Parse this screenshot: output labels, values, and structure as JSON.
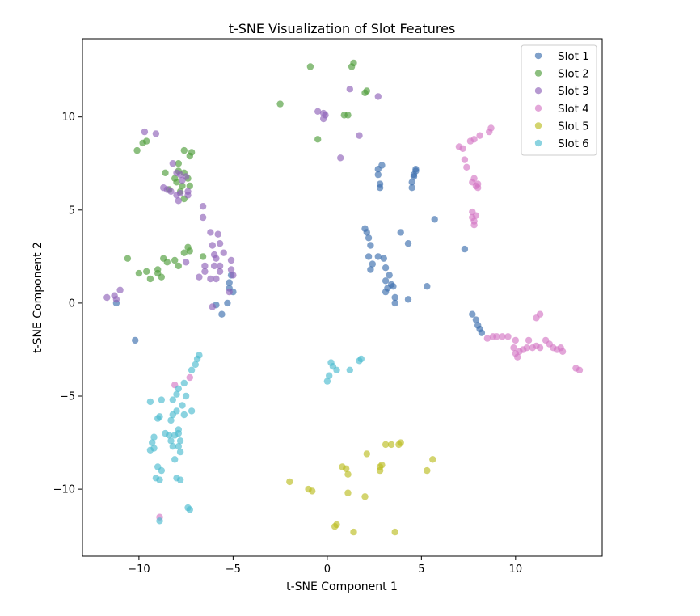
{
  "chart_data": {
    "type": "scatter",
    "title": "t-SNE Visualization of Slot Features",
    "xlabel": "t-SNE Component 1",
    "ylabel": "t-SNE Component 2",
    "xlim": [
      -13.0,
      14.6
    ],
    "ylim": [
      -13.6,
      14.2
    ],
    "xticks": [
      -10,
      -5,
      0,
      5,
      10
    ],
    "yticks": [
      -10,
      -5,
      0,
      5,
      10
    ],
    "xtick_labels": [
      "−10",
      "−5",
      "0",
      "5",
      "10"
    ],
    "ytick_labels": [
      "−10",
      "−5",
      "0",
      "5",
      "10"
    ],
    "grid": false,
    "legend_position": "top-right",
    "marker_alpha": 0.65,
    "series": [
      {
        "name": "Slot 1",
        "color": "#3c6fae",
        "points": [
          [
            2.7,
            7.2
          ],
          [
            2.9,
            7.4
          ],
          [
            2.7,
            6.9
          ],
          [
            2.8,
            6.4
          ],
          [
            2.8,
            6.2
          ],
          [
            4.7,
            7.1
          ],
          [
            4.6,
            6.8
          ],
          [
            4.5,
            6.5
          ],
          [
            4.5,
            6.2
          ],
          [
            4.6,
            6.9
          ],
          [
            4.7,
            7.2
          ],
          [
            2.0,
            4.0
          ],
          [
            2.1,
            3.8
          ],
          [
            2.2,
            3.5
          ],
          [
            2.3,
            3.1
          ],
          [
            3.9,
            3.8
          ],
          [
            4.3,
            3.2
          ],
          [
            5.7,
            4.5
          ],
          [
            7.3,
            2.9
          ],
          [
            2.2,
            2.5
          ],
          [
            2.4,
            2.1
          ],
          [
            2.3,
            1.8
          ],
          [
            2.7,
            2.5
          ],
          [
            3.0,
            2.4
          ],
          [
            3.1,
            1.9
          ],
          [
            3.3,
            1.5
          ],
          [
            3.1,
            1.2
          ],
          [
            3.4,
            1.0
          ],
          [
            3.2,
            0.8
          ],
          [
            3.5,
            0.9
          ],
          [
            3.1,
            0.6
          ],
          [
            3.6,
            0.3
          ],
          [
            3.6,
            0.0
          ],
          [
            4.3,
            0.2
          ],
          [
            5.3,
            0.9
          ],
          [
            7.7,
            -0.6
          ],
          [
            7.9,
            -0.9
          ],
          [
            8.0,
            -1.2
          ],
          [
            8.1,
            -1.4
          ],
          [
            8.2,
            -1.6
          ],
          [
            -5.1,
            1.5
          ],
          [
            -5.2,
            1.1
          ],
          [
            -5.2,
            0.8
          ],
          [
            -5.0,
            0.6
          ],
          [
            -5.3,
            0.0
          ],
          [
            -5.6,
            -0.6
          ],
          [
            -5.9,
            -0.1
          ],
          [
            -11.2,
            0.0
          ],
          [
            -10.2,
            -2.0
          ]
        ]
      },
      {
        "name": "Slot 2",
        "color": "#4e9d3a",
        "points": [
          [
            -0.9,
            12.7
          ],
          [
            1.4,
            12.9
          ],
          [
            1.3,
            12.7
          ],
          [
            -2.5,
            10.7
          ],
          [
            2.1,
            11.4
          ],
          [
            2.0,
            11.3
          ],
          [
            0.9,
            10.1
          ],
          [
            1.1,
            10.1
          ],
          [
            -0.5,
            8.8
          ],
          [
            -9.8,
            8.6
          ],
          [
            -9.6,
            8.7
          ],
          [
            -10.1,
            8.2
          ],
          [
            -7.6,
            8.2
          ],
          [
            -7.3,
            7.9
          ],
          [
            -7.2,
            8.1
          ],
          [
            -8.6,
            7.0
          ],
          [
            -7.9,
            7.5
          ],
          [
            -7.9,
            7.1
          ],
          [
            -7.6,
            7.0
          ],
          [
            -8.1,
            6.7
          ],
          [
            -8.0,
            6.5
          ],
          [
            -7.7,
            6.3
          ],
          [
            -7.8,
            6.0
          ],
          [
            -8.4,
            6.1
          ],
          [
            -7.3,
            6.3
          ],
          [
            -7.4,
            6.7
          ],
          [
            -7.6,
            5.6
          ],
          [
            -10.6,
            2.4
          ],
          [
            -10.0,
            1.6
          ],
          [
            -9.6,
            1.7
          ],
          [
            -9.4,
            1.3
          ],
          [
            -9.0,
            1.6
          ],
          [
            -9.0,
            1.8
          ],
          [
            -8.8,
            1.4
          ],
          [
            -8.7,
            2.4
          ],
          [
            -8.5,
            2.2
          ],
          [
            -8.1,
            2.3
          ],
          [
            -7.9,
            2.0
          ],
          [
            -7.6,
            2.7
          ],
          [
            -7.4,
            3.0
          ],
          [
            -7.3,
            2.8
          ],
          [
            -6.6,
            2.5
          ]
        ]
      },
      {
        "name": "Slot 3",
        "color": "#8f63b8",
        "points": [
          [
            1.2,
            11.5
          ],
          [
            2.7,
            11.1
          ],
          [
            -0.5,
            10.3
          ],
          [
            -0.2,
            10.2
          ],
          [
            -0.2,
            9.9
          ],
          [
            -0.1,
            10.1
          ],
          [
            1.7,
            9.0
          ],
          [
            0.7,
            7.8
          ],
          [
            -9.7,
            9.2
          ],
          [
            -9.1,
            9.1
          ],
          [
            -8.2,
            7.5
          ],
          [
            -8.0,
            7.0
          ],
          [
            -7.8,
            6.9
          ],
          [
            -7.7,
            6.6
          ],
          [
            -7.5,
            6.8
          ],
          [
            -8.7,
            6.2
          ],
          [
            -8.3,
            6.0
          ],
          [
            -8.5,
            6.1
          ],
          [
            -8.0,
            5.8
          ],
          [
            -7.8,
            5.9
          ],
          [
            -7.4,
            5.8
          ],
          [
            -7.4,
            6.0
          ],
          [
            -7.9,
            5.5
          ],
          [
            -6.6,
            5.2
          ],
          [
            -6.6,
            4.6
          ],
          [
            -6.2,
            3.8
          ],
          [
            -5.8,
            3.7
          ],
          [
            -5.7,
            3.2
          ],
          [
            -6.1,
            3.1
          ],
          [
            -5.5,
            2.7
          ],
          [
            -6.0,
            2.6
          ],
          [
            -5.9,
            2.4
          ],
          [
            -6.0,
            2.0
          ],
          [
            -5.7,
            2.0
          ],
          [
            -5.7,
            1.7
          ],
          [
            -6.5,
            2.0
          ],
          [
            -6.5,
            1.7
          ],
          [
            -6.8,
            1.4
          ],
          [
            -6.2,
            1.3
          ],
          [
            -5.9,
            1.3
          ],
          [
            -5.1,
            2.3
          ],
          [
            -5.1,
            1.8
          ],
          [
            -5.0,
            1.5
          ],
          [
            -5.2,
            0.6
          ],
          [
            -7.5,
            2.2
          ],
          [
            -6.1,
            -0.2
          ],
          [
            -11.7,
            0.3
          ],
          [
            -11.3,
            0.4
          ],
          [
            -11.0,
            0.7
          ],
          [
            -11.2,
            0.2
          ]
        ]
      },
      {
        "name": "Slot 4",
        "color": "#d478c4",
        "points": [
          [
            7.0,
            8.4
          ],
          [
            7.2,
            8.3
          ],
          [
            7.6,
            8.7
          ],
          [
            7.8,
            8.8
          ],
          [
            8.1,
            9.0
          ],
          [
            8.6,
            9.2
          ],
          [
            8.7,
            9.4
          ],
          [
            7.3,
            7.7
          ],
          [
            7.4,
            7.3
          ],
          [
            7.8,
            6.7
          ],
          [
            7.7,
            6.5
          ],
          [
            7.9,
            6.3
          ],
          [
            8.0,
            6.4
          ],
          [
            8.0,
            6.2
          ],
          [
            7.7,
            4.9
          ],
          [
            7.7,
            4.6
          ],
          [
            7.8,
            4.4
          ],
          [
            7.9,
            4.7
          ],
          [
            7.8,
            4.2
          ],
          [
            8.5,
            -1.9
          ],
          [
            8.8,
            -1.8
          ],
          [
            9.0,
            -1.8
          ],
          [
            9.3,
            -1.8
          ],
          [
            9.6,
            -1.8
          ],
          [
            10.0,
            -2.0
          ],
          [
            9.9,
            -2.4
          ],
          [
            10.0,
            -2.7
          ],
          [
            10.1,
            -2.9
          ],
          [
            10.2,
            -2.6
          ],
          [
            10.4,
            -2.5
          ],
          [
            10.6,
            -2.4
          ],
          [
            10.7,
            -2.0
          ],
          [
            10.9,
            -2.4
          ],
          [
            11.1,
            -2.3
          ],
          [
            11.3,
            -2.4
          ],
          [
            11.6,
            -2.0
          ],
          [
            11.8,
            -2.2
          ],
          [
            12.0,
            -2.4
          ],
          [
            12.2,
            -2.5
          ],
          [
            12.4,
            -2.4
          ],
          [
            12.5,
            -2.6
          ],
          [
            11.3,
            -0.6
          ],
          [
            11.1,
            -0.8
          ],
          [
            13.2,
            -3.5
          ],
          [
            13.4,
            -3.6
          ],
          [
            -7.3,
            -4.0
          ],
          [
            -8.1,
            -4.4
          ],
          [
            -8.9,
            -11.5
          ]
        ]
      },
      {
        "name": "Slot 5",
        "color": "#bcbd22",
        "points": [
          [
            3.1,
            -7.6
          ],
          [
            3.4,
            -7.6
          ],
          [
            3.8,
            -7.6
          ],
          [
            3.9,
            -7.5
          ],
          [
            2.1,
            -8.1
          ],
          [
            5.6,
            -8.4
          ],
          [
            0.8,
            -8.8
          ],
          [
            1.0,
            -8.9
          ],
          [
            1.1,
            -9.2
          ],
          [
            2.8,
            -8.8
          ],
          [
            2.9,
            -8.7
          ],
          [
            2.8,
            -9.0
          ],
          [
            5.3,
            -9.0
          ],
          [
            -2.0,
            -9.6
          ],
          [
            -1.0,
            -10.0
          ],
          [
            -0.8,
            -10.1
          ],
          [
            1.1,
            -10.2
          ],
          [
            2.0,
            -10.4
          ],
          [
            0.5,
            -11.9
          ],
          [
            0.4,
            -12.0
          ],
          [
            1.4,
            -12.3
          ],
          [
            3.6,
            -12.3
          ]
        ]
      },
      {
        "name": "Slot 6",
        "color": "#4dbcd0",
        "points": [
          [
            0.2,
            -3.2
          ],
          [
            0.3,
            -3.4
          ],
          [
            0.5,
            -3.6
          ],
          [
            0.1,
            -3.9
          ],
          [
            0.0,
            -4.2
          ],
          [
            1.2,
            -3.6
          ],
          [
            1.7,
            -3.1
          ],
          [
            1.8,
            -3.0
          ],
          [
            -6.8,
            -2.8
          ],
          [
            -6.9,
            -3.0
          ],
          [
            -7.0,
            -3.3
          ],
          [
            -7.2,
            -3.6
          ],
          [
            -7.6,
            -4.3
          ],
          [
            -7.9,
            -4.6
          ],
          [
            -7.5,
            -5.0
          ],
          [
            -8.0,
            -4.9
          ],
          [
            -8.2,
            -5.2
          ],
          [
            -7.7,
            -5.5
          ],
          [
            -9.4,
            -5.3
          ],
          [
            -8.8,
            -5.2
          ],
          [
            -8.9,
            -6.1
          ],
          [
            -8.0,
            -5.8
          ],
          [
            -8.2,
            -6.0
          ],
          [
            -7.6,
            -6.0
          ],
          [
            -7.2,
            -5.8
          ],
          [
            -8.3,
            -6.3
          ],
          [
            -9.0,
            -6.2
          ],
          [
            -8.6,
            -7.0
          ],
          [
            -8.4,
            -7.1
          ],
          [
            -8.1,
            -7.1
          ],
          [
            -7.9,
            -6.8
          ],
          [
            -7.9,
            -7.0
          ],
          [
            -7.8,
            -7.4
          ],
          [
            -8.3,
            -7.4
          ],
          [
            -8.2,
            -7.7
          ],
          [
            -7.9,
            -7.7
          ],
          [
            -7.8,
            -8.0
          ],
          [
            -9.2,
            -7.2
          ],
          [
            -9.3,
            -7.5
          ],
          [
            -9.2,
            -7.8
          ],
          [
            -9.4,
            -7.9
          ],
          [
            -8.1,
            -8.4
          ],
          [
            -9.0,
            -8.8
          ],
          [
            -8.8,
            -9.0
          ],
          [
            -9.1,
            -9.4
          ],
          [
            -8.9,
            -9.5
          ],
          [
            -8.0,
            -9.4
          ],
          [
            -7.8,
            -9.5
          ],
          [
            -7.4,
            -11.0
          ],
          [
            -7.3,
            -11.1
          ],
          [
            -8.9,
            -11.7
          ]
        ]
      }
    ]
  }
}
